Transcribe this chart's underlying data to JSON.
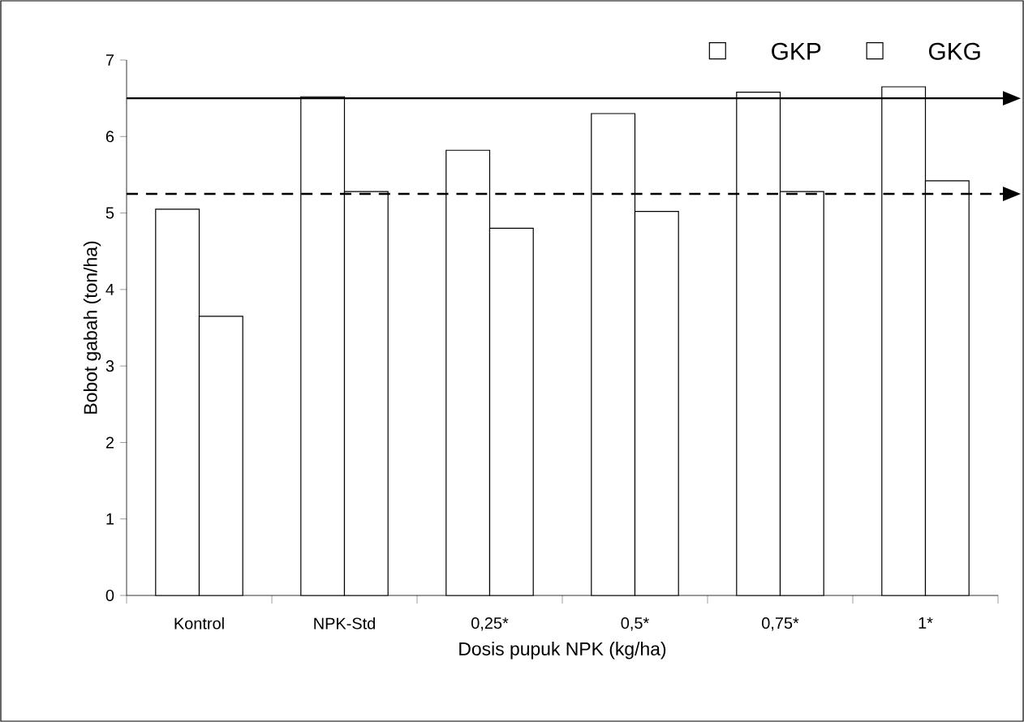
{
  "chart_data": {
    "type": "bar",
    "xlabel": "Dosis pupuk NPK (kg/ha)",
    "ylabel": "Bobot gabah (ton/ha)",
    "categories": [
      "Kontrol",
      "NPK-Std",
      "0,25*",
      "0,5*",
      "0,75*",
      "1*"
    ],
    "series": [
      {
        "name": "GKP",
        "color": "#ffffff",
        "values": [
          5.05,
          6.52,
          5.82,
          6.3,
          6.58,
          6.65
        ]
      },
      {
        "name": "GKG",
        "color": "#ffffff",
        "values": [
          3.65,
          5.28,
          4.8,
          5.02,
          5.28,
          5.42
        ]
      }
    ],
    "ylim": [
      0,
      7
    ],
    "yticks": [
      0,
      1,
      2,
      3,
      4,
      5,
      6,
      7
    ],
    "ref_lines": [
      {
        "axis": "y",
        "value": 6.5,
        "line_style": "solid",
        "color": "#000000"
      },
      {
        "axis": "y",
        "value": 5.25,
        "line_style": "dashed",
        "color": "#000000"
      }
    ],
    "legend": "top right",
    "grid": false
  }
}
